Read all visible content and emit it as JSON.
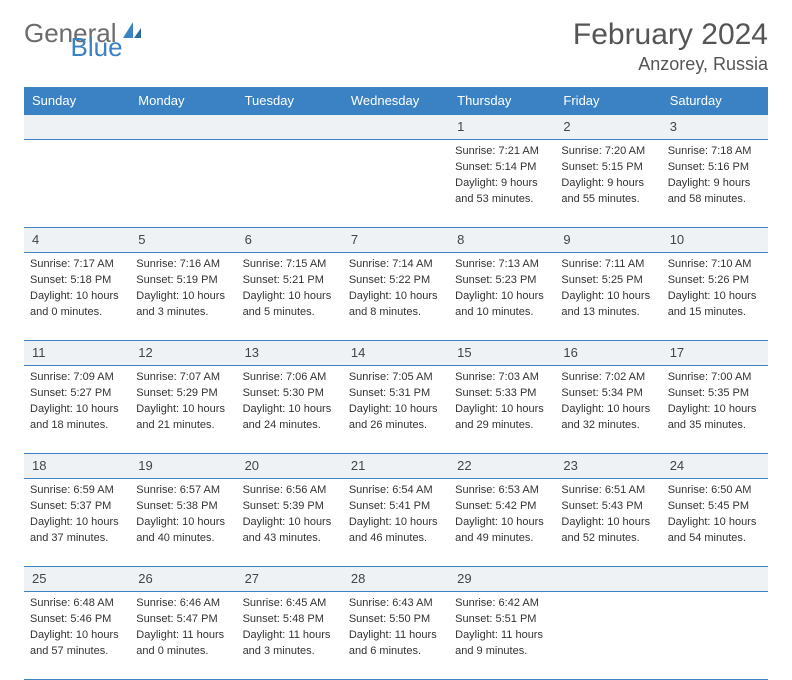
{
  "logo": {
    "word1": "General",
    "word2": "Blue"
  },
  "title": "February 2024",
  "location": "Anzorey, Russia",
  "colors": {
    "brand": "#3b82c4",
    "header_bg": "#3b82c4",
    "header_text": "#ffffff",
    "daynum_bg": "#eef2f5",
    "border": "#3b82c4",
    "text": "#333333",
    "logo_gray": "#6b6b6b"
  },
  "day_headers": [
    "Sunday",
    "Monday",
    "Tuesday",
    "Wednesday",
    "Thursday",
    "Friday",
    "Saturday"
  ],
  "weeks": [
    [
      null,
      null,
      null,
      null,
      {
        "n": "1",
        "sr": "Sunrise: 7:21 AM",
        "ss": "Sunset: 5:14 PM",
        "dl1": "Daylight: 9 hours",
        "dl2": "and 53 minutes."
      },
      {
        "n": "2",
        "sr": "Sunrise: 7:20 AM",
        "ss": "Sunset: 5:15 PM",
        "dl1": "Daylight: 9 hours",
        "dl2": "and 55 minutes."
      },
      {
        "n": "3",
        "sr": "Sunrise: 7:18 AM",
        "ss": "Sunset: 5:16 PM",
        "dl1": "Daylight: 9 hours",
        "dl2": "and 58 minutes."
      }
    ],
    [
      {
        "n": "4",
        "sr": "Sunrise: 7:17 AM",
        "ss": "Sunset: 5:18 PM",
        "dl1": "Daylight: 10 hours",
        "dl2": "and 0 minutes."
      },
      {
        "n": "5",
        "sr": "Sunrise: 7:16 AM",
        "ss": "Sunset: 5:19 PM",
        "dl1": "Daylight: 10 hours",
        "dl2": "and 3 minutes."
      },
      {
        "n": "6",
        "sr": "Sunrise: 7:15 AM",
        "ss": "Sunset: 5:21 PM",
        "dl1": "Daylight: 10 hours",
        "dl2": "and 5 minutes."
      },
      {
        "n": "7",
        "sr": "Sunrise: 7:14 AM",
        "ss": "Sunset: 5:22 PM",
        "dl1": "Daylight: 10 hours",
        "dl2": "and 8 minutes."
      },
      {
        "n": "8",
        "sr": "Sunrise: 7:13 AM",
        "ss": "Sunset: 5:23 PM",
        "dl1": "Daylight: 10 hours",
        "dl2": "and 10 minutes."
      },
      {
        "n": "9",
        "sr": "Sunrise: 7:11 AM",
        "ss": "Sunset: 5:25 PM",
        "dl1": "Daylight: 10 hours",
        "dl2": "and 13 minutes."
      },
      {
        "n": "10",
        "sr": "Sunrise: 7:10 AM",
        "ss": "Sunset: 5:26 PM",
        "dl1": "Daylight: 10 hours",
        "dl2": "and 15 minutes."
      }
    ],
    [
      {
        "n": "11",
        "sr": "Sunrise: 7:09 AM",
        "ss": "Sunset: 5:27 PM",
        "dl1": "Daylight: 10 hours",
        "dl2": "and 18 minutes."
      },
      {
        "n": "12",
        "sr": "Sunrise: 7:07 AM",
        "ss": "Sunset: 5:29 PM",
        "dl1": "Daylight: 10 hours",
        "dl2": "and 21 minutes."
      },
      {
        "n": "13",
        "sr": "Sunrise: 7:06 AM",
        "ss": "Sunset: 5:30 PM",
        "dl1": "Daylight: 10 hours",
        "dl2": "and 24 minutes."
      },
      {
        "n": "14",
        "sr": "Sunrise: 7:05 AM",
        "ss": "Sunset: 5:31 PM",
        "dl1": "Daylight: 10 hours",
        "dl2": "and 26 minutes."
      },
      {
        "n": "15",
        "sr": "Sunrise: 7:03 AM",
        "ss": "Sunset: 5:33 PM",
        "dl1": "Daylight: 10 hours",
        "dl2": "and 29 minutes."
      },
      {
        "n": "16",
        "sr": "Sunrise: 7:02 AM",
        "ss": "Sunset: 5:34 PM",
        "dl1": "Daylight: 10 hours",
        "dl2": "and 32 minutes."
      },
      {
        "n": "17",
        "sr": "Sunrise: 7:00 AM",
        "ss": "Sunset: 5:35 PM",
        "dl1": "Daylight: 10 hours",
        "dl2": "and 35 minutes."
      }
    ],
    [
      {
        "n": "18",
        "sr": "Sunrise: 6:59 AM",
        "ss": "Sunset: 5:37 PM",
        "dl1": "Daylight: 10 hours",
        "dl2": "and 37 minutes."
      },
      {
        "n": "19",
        "sr": "Sunrise: 6:57 AM",
        "ss": "Sunset: 5:38 PM",
        "dl1": "Daylight: 10 hours",
        "dl2": "and 40 minutes."
      },
      {
        "n": "20",
        "sr": "Sunrise: 6:56 AM",
        "ss": "Sunset: 5:39 PM",
        "dl1": "Daylight: 10 hours",
        "dl2": "and 43 minutes."
      },
      {
        "n": "21",
        "sr": "Sunrise: 6:54 AM",
        "ss": "Sunset: 5:41 PM",
        "dl1": "Daylight: 10 hours",
        "dl2": "and 46 minutes."
      },
      {
        "n": "22",
        "sr": "Sunrise: 6:53 AM",
        "ss": "Sunset: 5:42 PM",
        "dl1": "Daylight: 10 hours",
        "dl2": "and 49 minutes."
      },
      {
        "n": "23",
        "sr": "Sunrise: 6:51 AM",
        "ss": "Sunset: 5:43 PM",
        "dl1": "Daylight: 10 hours",
        "dl2": "and 52 minutes."
      },
      {
        "n": "24",
        "sr": "Sunrise: 6:50 AM",
        "ss": "Sunset: 5:45 PM",
        "dl1": "Daylight: 10 hours",
        "dl2": "and 54 minutes."
      }
    ],
    [
      {
        "n": "25",
        "sr": "Sunrise: 6:48 AM",
        "ss": "Sunset: 5:46 PM",
        "dl1": "Daylight: 10 hours",
        "dl2": "and 57 minutes."
      },
      {
        "n": "26",
        "sr": "Sunrise: 6:46 AM",
        "ss": "Sunset: 5:47 PM",
        "dl1": "Daylight: 11 hours",
        "dl2": "and 0 minutes."
      },
      {
        "n": "27",
        "sr": "Sunrise: 6:45 AM",
        "ss": "Sunset: 5:48 PM",
        "dl1": "Daylight: 11 hours",
        "dl2": "and 3 minutes."
      },
      {
        "n": "28",
        "sr": "Sunrise: 6:43 AM",
        "ss": "Sunset: 5:50 PM",
        "dl1": "Daylight: 11 hours",
        "dl2": "and 6 minutes."
      },
      {
        "n": "29",
        "sr": "Sunrise: 6:42 AM",
        "ss": "Sunset: 5:51 PM",
        "dl1": "Daylight: 11 hours",
        "dl2": "and 9 minutes."
      },
      null,
      null
    ]
  ]
}
